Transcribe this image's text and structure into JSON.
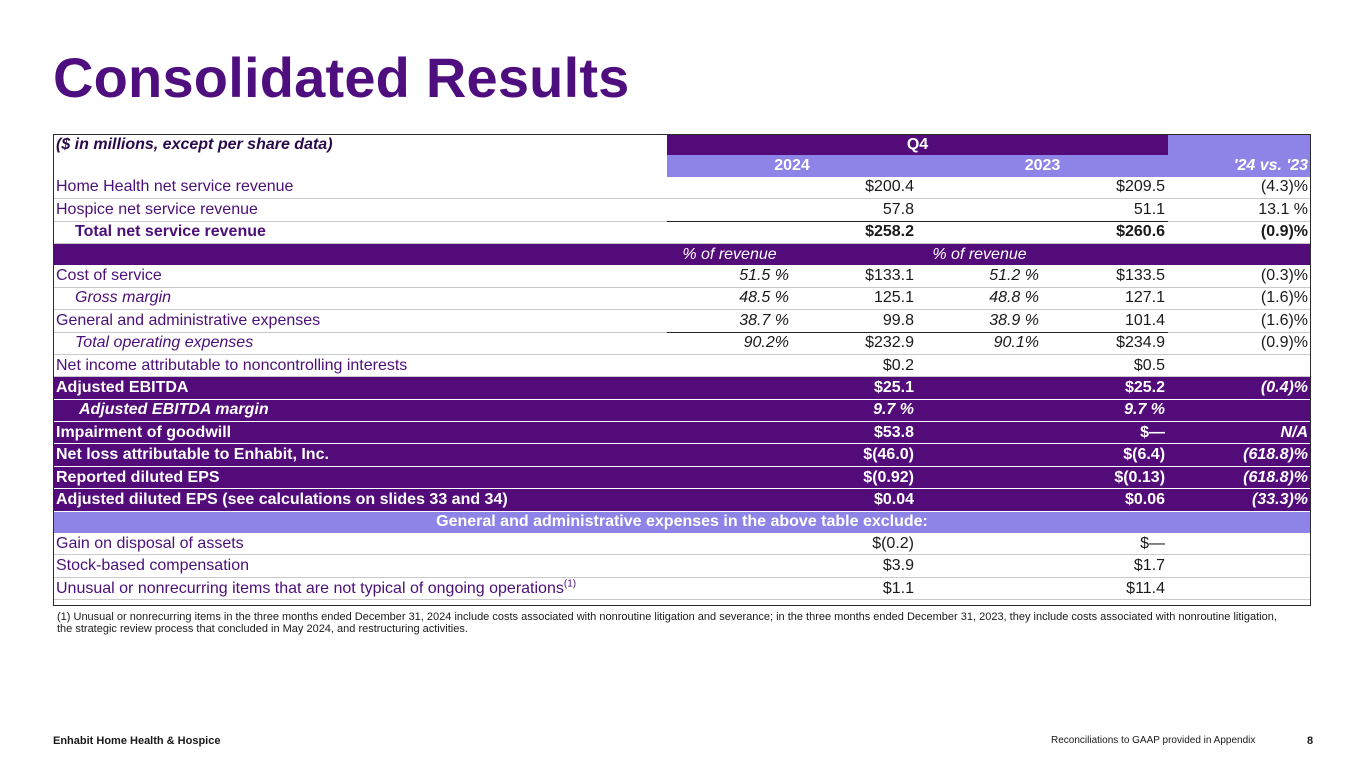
{
  "title": "Consolidated Results",
  "table": {
    "caption": "($ in millions, except per share data)",
    "period": "Q4",
    "col_2024": "2024",
    "col_2023": "2023",
    "col_var": "'24 vs. '23",
    "pct_label_2024": "% of revenue",
    "pct_label_2023": "% of revenue",
    "rows": {
      "hh_revenue": {
        "label": "Home Health net service revenue",
        "v2024": "$200.4",
        "v2023": "$209.5",
        "var": "(4.3)%"
      },
      "hospice_revenue": {
        "label": "Hospice net service revenue",
        "v2024": "57.8",
        "v2023": "51.1",
        "var": "13.1 %"
      },
      "total_revenue": {
        "label": "Total net service revenue",
        "v2024": "$258.2",
        "v2023": "$260.6",
        "var": "(0.9)%"
      },
      "cost_of_service": {
        "label": "Cost of service",
        "p2024": "51.5 %",
        "v2024": "$133.1",
        "p2023": "51.2 %",
        "v2023": "$133.5",
        "var": "(0.3)%"
      },
      "gross_margin": {
        "label": "Gross margin",
        "p2024": "48.5 %",
        "v2024": "125.1",
        "p2023": "48.8 %",
        "v2023": "127.1",
        "var": "(1.6)%"
      },
      "ga_expenses": {
        "label": "General and administrative expenses",
        "p2024": "38.7 %",
        "v2024": "99.8",
        "p2023": "38.9 %",
        "v2023": "101.4",
        "var": "(1.6)%"
      },
      "total_opex": {
        "label": "Total operating expenses",
        "p2024": "90.2%",
        "v2024": "$232.9",
        "p2023": "90.1%",
        "v2023": "$234.9",
        "var": "(0.9)%"
      },
      "nci": {
        "label": "Net income attributable to noncontrolling interests",
        "v2024": "$0.2",
        "v2023": "$0.5",
        "var": ""
      },
      "adj_ebitda": {
        "label": "Adjusted EBITDA",
        "v2024": "$25.1",
        "v2023": "$25.2",
        "var": "(0.4)%"
      },
      "adj_ebitda_margin": {
        "label": "Adjusted EBITDA margin",
        "v2024": "9.7 %",
        "v2023": "9.7 %",
        "var": ""
      },
      "impairment": {
        "label": "Impairment of goodwill",
        "v2024": "$53.8",
        "v2023": "$—",
        "var": "N/A"
      },
      "net_loss": {
        "label": "Net loss attributable to Enhabit, Inc.",
        "v2024": "$(46.0)",
        "v2023": "$(6.4)",
        "var": "(618.8)%"
      },
      "reported_eps": {
        "label": "Reported diluted EPS",
        "v2024": "$(0.92)",
        "v2023": "$(0.13)",
        "var": "(618.8)%"
      },
      "adjusted_eps": {
        "label": "Adjusted diluted EPS (see calculations on slides 33 and 34)",
        "v2024": "$0.04",
        "v2023": "$0.06",
        "var": "(33.3)%"
      }
    },
    "exclusions_header": "General and administrative expenses in the above table exclude:",
    "exclusions": {
      "gain_disposal": {
        "label": "Gain on disposal of assets",
        "v2024": "$(0.2)",
        "v2023": "$—"
      },
      "stock_comp": {
        "label": "Stock-based compensation",
        "v2024": "$3.9",
        "v2023": "$1.7"
      },
      "unusual": {
        "label": "Unusual or nonrecurring items that are not typical of ongoing operations",
        "sup": "(1)",
        "v2024": "$1.1",
        "v2023": "$11.4"
      }
    }
  },
  "footnote": "(1) Unusual or nonrecurring items in the three months ended December 31, 2024 include costs associated with nonroutine litigation and severance; in the three months ended December 31, 2023, they include costs associated with nonroutine litigation, the strategic review process that concluded in May 2024, and restructuring activities.",
  "footer": {
    "company": "Enhabit Home Health & Hospice",
    "note": "Reconciliations to GAAP provided in Appendix",
    "page": "8"
  },
  "colors": {
    "dark_purple": "#520b78",
    "light_purple": "#8e83e6",
    "title_purple": "#4e0e7e"
  }
}
